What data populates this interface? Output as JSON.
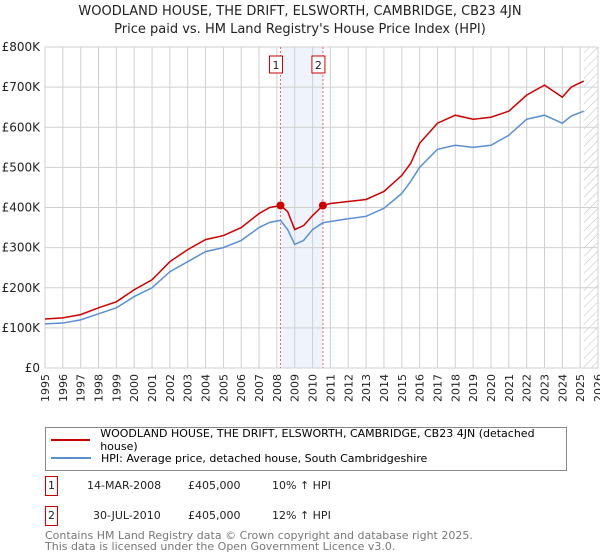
{
  "title": "WOODLAND HOUSE, THE DRIFT, ELSWORTH, CAMBRIDGE, CB23 4JN",
  "subtitle": "Price paid vs. HM Land Registry's House Price Index (HPI)",
  "chart_data": {
    "type": "line",
    "title": "WOODLAND HOUSE, THE DRIFT, ELSWORTH, CAMBRIDGE, CB23 4JN",
    "xlim": [
      1995,
      2026
    ],
    "ylim": [
      0,
      800000
    ],
    "x_ticks": [
      "1995",
      "1996",
      "1997",
      "1998",
      "1999",
      "2000",
      "2001",
      "2002",
      "2003",
      "2004",
      "2005",
      "2006",
      "2007",
      "2008",
      "2009",
      "2010",
      "2011",
      "2012",
      "2013",
      "2014",
      "2015",
      "2016",
      "2017",
      "2018",
      "2019",
      "2020",
      "2021",
      "2022",
      "2023",
      "2024",
      "2025",
      "2026"
    ],
    "y_ticks": [
      {
        "v": 0,
        "label": "£0"
      },
      {
        "v": 100000,
        "label": "£100K"
      },
      {
        "v": 200000,
        "label": "£200K"
      },
      {
        "v": 300000,
        "label": "£300K"
      },
      {
        "v": 400000,
        "label": "£400K"
      },
      {
        "v": 500000,
        "label": "£500K"
      },
      {
        "v": 600000,
        "label": "£600K"
      },
      {
        "v": 700000,
        "label": "£700K"
      },
      {
        "v": 800000,
        "label": "£800K"
      }
    ],
    "series": [
      {
        "name": "WOODLAND HOUSE, THE DRIFT, ELSWORTH, CAMBRIDGE, CB23 4JN (detached house)",
        "color": "#cc0000",
        "x": [
          1995,
          1996,
          1997,
          1998,
          1999,
          2000,
          2001,
          2002,
          2003,
          2004,
          2005,
          2006,
          2007,
          2007.6,
          2008.2,
          2008.6,
          2009.0,
          2009.5,
          2010.0,
          2010.58,
          2011,
          2012,
          2013,
          2014,
          2015,
          2015.5,
          2016,
          2017,
          2018,
          2019,
          2020,
          2021,
          2022,
          2023,
          2023.5,
          2024,
          2024.5,
          2025.2
        ],
        "y": [
          122000,
          125000,
          133000,
          150000,
          165000,
          195000,
          220000,
          265000,
          295000,
          320000,
          330000,
          350000,
          385000,
          400000,
          405000,
          390000,
          345000,
          355000,
          380000,
          405000,
          410000,
          415000,
          420000,
          440000,
          480000,
          510000,
          560000,
          610000,
          630000,
          620000,
          625000,
          640000,
          680000,
          705000,
          690000,
          675000,
          700000,
          715000
        ]
      },
      {
        "name": "HPI: Average price, detached house, South Cambridgeshire",
        "color": "#5b8fd4",
        "x": [
          1995,
          1996,
          1997,
          1998,
          1999,
          2000,
          2001,
          2002,
          2003,
          2004,
          2005,
          2006,
          2007,
          2007.6,
          2008.2,
          2008.6,
          2009.0,
          2009.5,
          2010.0,
          2010.58,
          2011,
          2012,
          2013,
          2014,
          2015,
          2015.5,
          2016,
          2017,
          2018,
          2019,
          2020,
          2021,
          2022,
          2023,
          2023.5,
          2024,
          2024.5,
          2025.2
        ],
        "y": [
          110000,
          112000,
          120000,
          135000,
          150000,
          178000,
          200000,
          240000,
          265000,
          290000,
          300000,
          318000,
          350000,
          363000,
          368000,
          345000,
          308000,
          318000,
          345000,
          362000,
          365000,
          372000,
          378000,
          398000,
          435000,
          465000,
          500000,
          545000,
          555000,
          550000,
          555000,
          580000,
          620000,
          630000,
          620000,
          610000,
          628000,
          640000
        ]
      }
    ],
    "markers": [
      {
        "label": "1",
        "x": 2008.2,
        "y": 405000
      },
      {
        "label": "2",
        "x": 2010.58,
        "y": 405000
      }
    ],
    "legend": "bottom"
  },
  "legend": {
    "red": "WOODLAND HOUSE, THE DRIFT, ELSWORTH, CAMBRIDGE, CB23 4JN (detached house)",
    "blue": "HPI: Average price, detached house, South Cambridgeshire"
  },
  "sales": [
    {
      "num": "1",
      "date": "14-MAR-2008",
      "price": "£405,000",
      "hpi": "10% ↑ HPI"
    },
    {
      "num": "2",
      "date": "30-JUL-2010",
      "price": "£405,000",
      "hpi": "12% ↑ HPI"
    }
  ],
  "footer1": "Contains HM Land Registry data © Crown copyright and database right 2025.",
  "footer2": "This data is licensed under the Open Government Licence v3.0."
}
